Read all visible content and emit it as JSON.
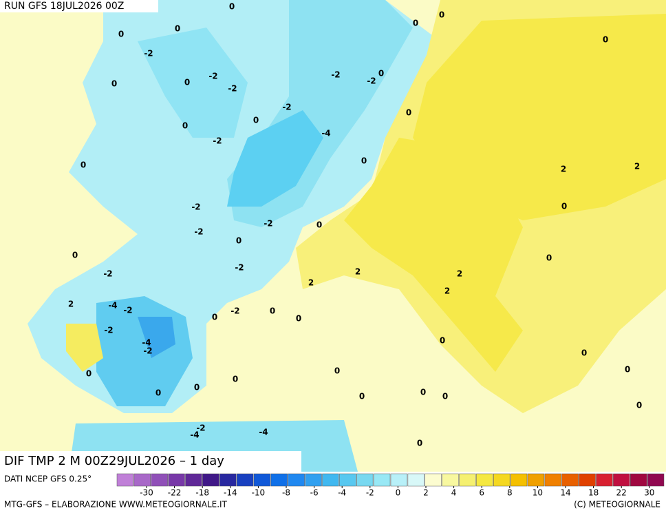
{
  "header": {
    "run": "RUN GFS 18JUL2026 00Z"
  },
  "map": {
    "title": "DIF TMP 2 M 00Z29JUL2026 – 1 day",
    "contour_labels": [
      "0",
      "0",
      "0",
      "0",
      "0",
      "0",
      "-2",
      "0",
      "-2",
      "0",
      "-2",
      "-2",
      "0",
      "-2",
      "-2",
      "0",
      "0",
      "0",
      "-4",
      "-2",
      "0",
      "0",
      "2",
      "2",
      "-2",
      "0",
      "-2",
      "0",
      "-2",
      "0",
      "0",
      "0",
      "-2",
      "-2",
      "2",
      "2",
      "2",
      "2",
      "2",
      "-4",
      "-2",
      "-2",
      "0",
      "0",
      "0",
      "-2",
      "-4",
      "-2",
      "0",
      "0",
      "0",
      "0",
      "0",
      "0",
      "0",
      "0",
      "0",
      "0",
      "0",
      "0",
      "-2",
      "-4",
      "-4",
      "0"
    ]
  },
  "colorbar": {
    "source": "DATI NCEP GFS 0.25°",
    "colors": [
      "#c080d8",
      "#a868c8",
      "#9050b8",
      "#7838a8",
      "#602898",
      "#401888",
      "#2828a0",
      "#1840c0",
      "#1058d8",
      "#1070e8",
      "#2088f0",
      "#30a0f0",
      "#40b8f0",
      "#58c8f0",
      "#78d8f0",
      "#98e8f5",
      "#b8f0f8",
      "#d8f8f8",
      "#fcfcd0",
      "#f8f8a0",
      "#f5f070",
      "#f5e840",
      "#f5d820",
      "#f5c000",
      "#f0a000",
      "#f08000",
      "#e86000",
      "#e04000",
      "#d82030",
      "#c01040",
      "#a00840",
      "#900850"
    ],
    "ticks": [
      -30,
      -22,
      -18,
      -14,
      -10,
      -8,
      -6,
      -4,
      -2,
      0,
      2,
      4,
      6,
      8,
      10,
      14,
      18,
      22,
      30
    ]
  },
  "footer": {
    "left": "MTG-GFS – ELABORAZIONE WWW.METEOGIORNALE.IT",
    "right": "(C) METEOGIORNALE"
  }
}
